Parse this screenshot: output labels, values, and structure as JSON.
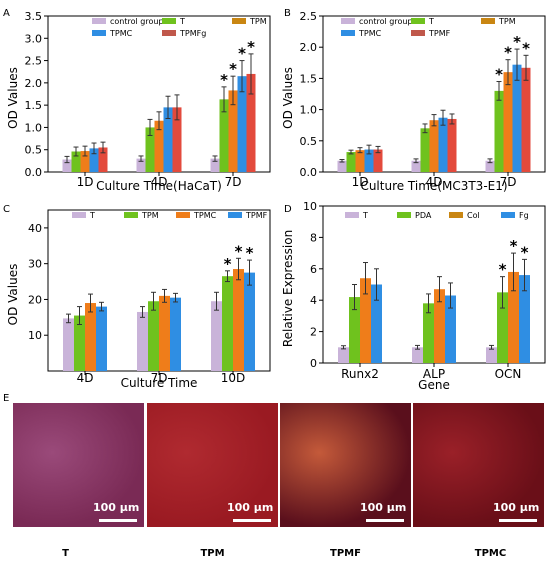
{
  "panel_letters": [
    "A",
    "B",
    "C",
    "D",
    "E"
  ],
  "colors": {
    "lavender": "#c9b3d9",
    "green": "#6fc21e",
    "orange": "#ef7d1a",
    "blue": "#2f8ee3",
    "red": "#e34a3c",
    "brown": "#c0584b",
    "gold": "#c98612",
    "axis": "#000000"
  },
  "chart_data": [
    {
      "id": "A",
      "type": "bar",
      "ylabel": "OD Values",
      "xlabel": "Culture Time(HaCaT)",
      "categories": [
        "1D",
        "4D",
        "7D"
      ],
      "ylim": [
        0,
        3.5
      ],
      "yticks": [
        "0.0",
        "0.5",
        "1.0",
        "1.5",
        "2.0",
        "2.5",
        "3.0",
        "3.5"
      ],
      "legend": [
        {
          "name": "control group",
          "color": "#c9b3d9"
        },
        {
          "name": "T",
          "color": "#6fc21e"
        },
        {
          "name": "TPM",
          "color": "#c98612"
        },
        {
          "name": "TPMC",
          "color": "#2f8ee3"
        },
        {
          "name": "TPMFg",
          "color": "#c0584b"
        }
      ],
      "series": [
        {
          "name": "control group",
          "color": "#c9b3d9",
          "values": [
            0.28,
            0.3,
            0.3
          ],
          "errors": [
            0.07,
            0.06,
            0.06
          ]
        },
        {
          "name": "T",
          "color": "#6fc21e",
          "values": [
            0.46,
            1.0,
            1.63
          ],
          "errors": [
            0.1,
            0.18,
            0.28
          ]
        },
        {
          "name": "TPM",
          "color": "#ef7d1a",
          "values": [
            0.47,
            1.15,
            1.83
          ],
          "errors": [
            0.11,
            0.2,
            0.32
          ]
        },
        {
          "name": "TPMC",
          "color": "#2f8ee3",
          "values": [
            0.53,
            1.45,
            2.15
          ],
          "errors": [
            0.12,
            0.25,
            0.35
          ]
        },
        {
          "name": "TPMFg",
          "color": "#e34a3c",
          "values": [
            0.55,
            1.45,
            2.2
          ],
          "errors": [
            0.12,
            0.28,
            0.45
          ]
        }
      ],
      "stars": [
        [
          2,
          1
        ],
        [
          2,
          2
        ],
        [
          2,
          3
        ],
        [
          2,
          4
        ]
      ],
      "star_label": "*"
    },
    {
      "id": "B",
      "type": "bar",
      "ylabel": "OD Values",
      "xlabel": "Culture Time(MC3T3-E1)",
      "categories": [
        "1D",
        "4D",
        "7D"
      ],
      "ylim": [
        0,
        2.5
      ],
      "yticks": [
        "0.0",
        "0.5",
        "1.0",
        "1.5",
        "2.0",
        "2.5"
      ],
      "legend": [
        {
          "name": "control group",
          "color": "#c9b3d9"
        },
        {
          "name": "T",
          "color": "#6fc21e"
        },
        {
          "name": "TPM",
          "color": "#c98612"
        },
        {
          "name": "TPMC",
          "color": "#2f8ee3"
        },
        {
          "name": "TPMF",
          "color": "#c0584b"
        }
      ],
      "series": [
        {
          "name": "control group",
          "color": "#c9b3d9",
          "values": [
            0.18,
            0.18,
            0.18
          ],
          "errors": [
            0.02,
            0.03,
            0.03
          ]
        },
        {
          "name": "T",
          "color": "#6fc21e",
          "values": [
            0.32,
            0.7,
            1.3
          ],
          "errors": [
            0.03,
            0.07,
            0.15
          ]
        },
        {
          "name": "TPM",
          "color": "#ef7d1a",
          "values": [
            0.35,
            0.83,
            1.6
          ],
          "errors": [
            0.04,
            0.09,
            0.2
          ]
        },
        {
          "name": "TPMC",
          "color": "#2f8ee3",
          "values": [
            0.36,
            0.87,
            1.72
          ],
          "errors": [
            0.07,
            0.12,
            0.25
          ]
        },
        {
          "name": "TPMF",
          "color": "#e34a3c",
          "values": [
            0.36,
            0.85,
            1.67
          ],
          "errors": [
            0.05,
            0.08,
            0.2
          ]
        }
      ],
      "stars": [
        [
          2,
          1
        ],
        [
          2,
          2
        ],
        [
          2,
          3
        ],
        [
          2,
          4
        ]
      ],
      "star_label": "*"
    },
    {
      "id": "C",
      "type": "bar",
      "ylabel": "OD Values",
      "xlabel": "Culture Time",
      "categories": [
        "4D",
        "7D",
        "10D"
      ],
      "ylim": [
        0,
        45
      ],
      "yticks": [
        "10",
        "20",
        "30",
        "40"
      ],
      "ytick_values": [
        10,
        20,
        30,
        40
      ],
      "legend": [
        {
          "name": "T",
          "color": "#c9b3d9"
        },
        {
          "name": "TPM",
          "color": "#6fc21e"
        },
        {
          "name": "TPMC",
          "color": "#ef7d1a"
        },
        {
          "name": "TPMF",
          "color": "#2f8ee3"
        }
      ],
      "series": [
        {
          "name": "T",
          "color": "#c9b3d9",
          "values": [
            14.7,
            16.5,
            19.5
          ],
          "errors": [
            1.2,
            1.5,
            2.5
          ]
        },
        {
          "name": "TPM",
          "color": "#6fc21e",
          "values": [
            15.5,
            19.5,
            26.5
          ],
          "errors": [
            2.5,
            2.5,
            1.5
          ]
        },
        {
          "name": "TPMC",
          "color": "#ef7d1a",
          "values": [
            19.0,
            21.0,
            28.5
          ],
          "errors": [
            2.5,
            1.8,
            3.0
          ]
        },
        {
          "name": "TPMF",
          "color": "#2f8ee3",
          "values": [
            18.0,
            20.5,
            27.5
          ],
          "errors": [
            1.2,
            1.2,
            3.5
          ]
        }
      ],
      "stars": [
        [
          2,
          1
        ],
        [
          2,
          2
        ],
        [
          2,
          3
        ]
      ],
      "star_label": "*"
    },
    {
      "id": "D",
      "type": "bar",
      "ylabel": "Relative Expression",
      "xlabel": "Gene",
      "categories": [
        "Runx2",
        "ALP",
        "OCN"
      ],
      "ylim": [
        0,
        10
      ],
      "yticks": [
        "0",
        "2",
        "4",
        "6",
        "8",
        "10"
      ],
      "legend": [
        {
          "name": "T",
          "color": "#c9b3d9"
        },
        {
          "name": "PDA",
          "color": "#6fc21e"
        },
        {
          "name": "Col",
          "color": "#c98612"
        },
        {
          "name": "Fg",
          "color": "#2f8ee3"
        }
      ],
      "series": [
        {
          "name": "T",
          "color": "#c9b3d9",
          "values": [
            1.0,
            1.0,
            1.0
          ],
          "errors": [
            0.1,
            0.12,
            0.12
          ]
        },
        {
          "name": "PDA",
          "color": "#6fc21e",
          "values": [
            4.2,
            3.8,
            4.5
          ],
          "errors": [
            0.8,
            0.6,
            1.0
          ]
        },
        {
          "name": "Col",
          "color": "#ef7d1a",
          "values": [
            5.4,
            4.7,
            5.8
          ],
          "errors": [
            1.0,
            0.8,
            1.2
          ]
        },
        {
          "name": "Fg",
          "color": "#2f8ee3",
          "values": [
            5.0,
            4.3,
            5.6
          ],
          "errors": [
            1.0,
            0.8,
            1.0
          ]
        }
      ],
      "stars": [
        [
          2,
          1
        ],
        [
          2,
          2
        ],
        [
          2,
          3
        ]
      ],
      "star_label": "*"
    }
  ],
  "micrographs": [
    {
      "label": "T",
      "scale": "100 μm",
      "base": "#7a2a55",
      "spot": "#9a4a7a"
    },
    {
      "label": "TPM",
      "scale": "100 μm",
      "base": "#9a1a22",
      "spot": "#b02a30"
    },
    {
      "label": "TPMF",
      "scale": "100 μm",
      "base": "#5a0f1c",
      "spot": "#c45a3a"
    },
    {
      "label": "TPMC",
      "scale": "100 μm",
      "base": "#6a0f18",
      "spot": "#9a2028"
    }
  ]
}
